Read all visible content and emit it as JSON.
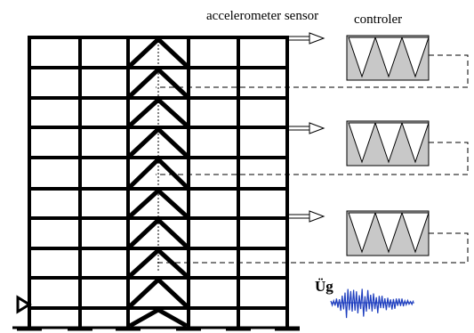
{
  "labels": {
    "sensor": "accelerometer sensor",
    "controller": "controler",
    "ground_acceleration": "Üg"
  },
  "structure": {
    "stories": 10,
    "bays": 6,
    "braced_bay_index": 3,
    "sensor_count": 3,
    "controller_count": 3
  },
  "colors": {
    "frame": "#000000",
    "controller_fill": "#c8c8c8",
    "signal": "#1f3fbf",
    "dashed_line": "#000000"
  }
}
